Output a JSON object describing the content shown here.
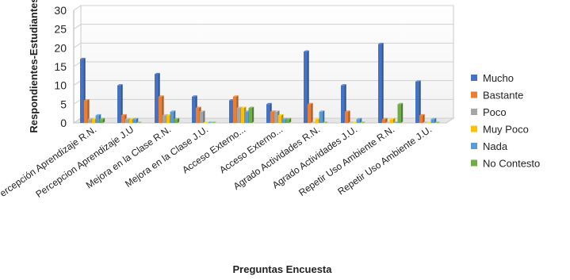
{
  "chart_data": {
    "type": "bar",
    "title": "",
    "xlabel": "Preguntas Encuesta",
    "ylabel": "Respondientes-Estudiantes",
    "ylim": [
      0,
      30
    ],
    "yticks": [
      0,
      5,
      10,
      15,
      20,
      25,
      30
    ],
    "grid": true,
    "legend_position": "right",
    "categories": [
      "Percepción Aprendizaje R.N.",
      "Percepcion Aprendizaje J.U",
      "Mejora en la Clase R.N.",
      "Mejora en la Clase J.U.",
      "Acceso Externo...",
      "Acceso Externo...",
      "Agrado Actividades R.N.",
      "Agrado Actividades J.U.",
      "Repetir Uso Ambiente  R.N.",
      "Repetir Uso Ambiente J.U."
    ],
    "series": [
      {
        "name": "Mucho",
        "color": "#4472C4",
        "values": [
          17,
          10,
          13,
          7,
          6,
          5,
          19,
          10,
          21,
          11
        ]
      },
      {
        "name": "Bastante",
        "color": "#ED7D31",
        "values": [
          6,
          2,
          7,
          4,
          7,
          3,
          5,
          3,
          1,
          2
        ]
      },
      {
        "name": "Poco",
        "color": "#A5A5A5",
        "values": [
          1,
          1,
          2,
          3,
          4,
          3,
          0,
          0,
          0,
          0
        ]
      },
      {
        "name": "Muy Poco",
        "color": "#FFC000",
        "values": [
          1,
          1,
          2,
          0,
          4,
          2,
          1,
          0,
          1,
          0
        ]
      },
      {
        "name": "Nada",
        "color": "#5B9BD5",
        "values": [
          2,
          1,
          3,
          0,
          3,
          1,
          3,
          1,
          0,
          1
        ]
      },
      {
        "name": "No Contesto",
        "color": "#70AD47",
        "values": [
          1,
          0,
          1,
          0,
          4,
          1,
          0,
          0,
          5,
          0
        ]
      }
    ]
  }
}
